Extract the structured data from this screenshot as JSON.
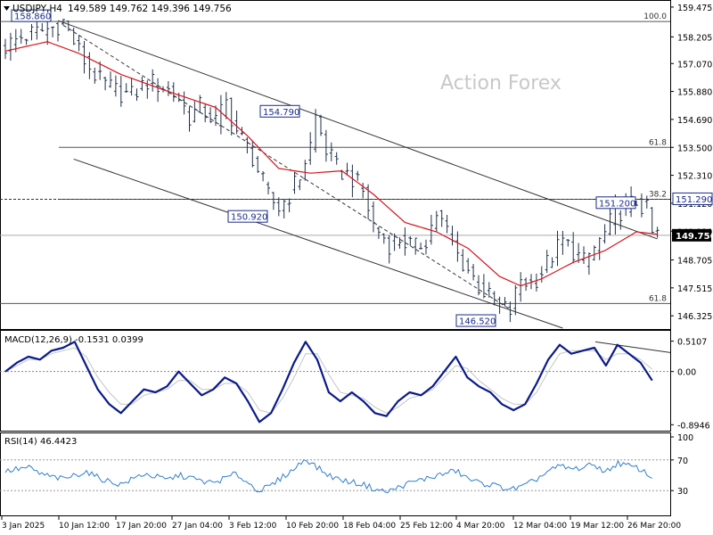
{
  "header": {
    "symbol": "USDJPY,H4",
    "ohlc": "149.589 149.762 149.396 149.756",
    "watermark": "Action Forex"
  },
  "colors": {
    "candle": "#1f2f4a",
    "ma": "#d4141c",
    "macd": "#0a1a8a",
    "macd_signal": "#c4c4c4",
    "rsi": "#2f7fd0",
    "grid": "#9a9a9a",
    "label_box": "#1a2b8c"
  },
  "x_axis": {
    "labels": [
      "3 Jan 2025",
      "10 Jan 12:00",
      "17 Jan 20:00",
      "27 Jan 04:00",
      "3 Feb 12:00",
      "10 Feb 20:00",
      "18 Feb 04:00",
      "25 Feb 12:00",
      "4 Mar 20:00",
      "12 Mar 04:00",
      "19 Mar 12:00",
      "26 Mar 20:00"
    ]
  },
  "chart_data": [
    {
      "type": "candlestick",
      "title": "USDJPY,H4",
      "ylim": [
        145.8,
        159.7
      ],
      "y_ticks": [
        159.475,
        158.205,
        157.07,
        155.88,
        154.69,
        153.5,
        152.31,
        151.12,
        149.93,
        148.705,
        147.515,
        146.325
      ],
      "y_tick_labels": [
        "159.475",
        "158.205",
        "157.070",
        "155.880",
        "154.690",
        "153.500",
        "152.310",
        "151.120",
        "149.930",
        "148.705",
        "147.515",
        "146.325"
      ],
      "last_price": "149.756",
      "price_path": [
        [
          0,
          157.8
        ],
        [
          3,
          158.2
        ],
        [
          6,
          158.4
        ],
        [
          9,
          158.6
        ],
        [
          11,
          158.86
        ],
        [
          13,
          158.0
        ],
        [
          15,
          157.2
        ],
        [
          18,
          156.3
        ],
        [
          21,
          155.9
        ],
        [
          24,
          155.7
        ],
        [
          27,
          156.3
        ],
        [
          30,
          156.1
        ],
        [
          33,
          155.6
        ],
        [
          35,
          154.8
        ],
        [
          37,
          155.2
        ],
        [
          40,
          154.6
        ],
        [
          42,
          155.4
        ],
        [
          44,
          154.2
        ],
        [
          47,
          153.1
        ],
        [
          50,
          151.4
        ],
        [
          52,
          150.92
        ],
        [
          54,
          151.5
        ],
        [
          56,
          152.3
        ],
        [
          58,
          153.6
        ],
        [
          59,
          154.79
        ],
        [
          61,
          153.4
        ],
        [
          63,
          152.6
        ],
        [
          66,
          152.2
        ],
        [
          68,
          151.6
        ],
        [
          70,
          150.2
        ],
        [
          73,
          149.4
        ],
        [
          75,
          149.6
        ],
        [
          78,
          149.2
        ],
        [
          80,
          149.6
        ],
        [
          82,
          150.7
        ],
        [
          84,
          149.9
        ],
        [
          86,
          148.9
        ],
        [
          88,
          148.3
        ],
        [
          90,
          147.6
        ],
        [
          92,
          147.1
        ],
        [
          94,
          146.7
        ],
        [
          96,
          146.52
        ],
        [
          98,
          147.9
        ],
        [
          100,
          147.7
        ],
        [
          102,
          148.2
        ],
        [
          104,
          148.9
        ],
        [
          106,
          149.5
        ],
        [
          108,
          149.1
        ],
        [
          110,
          148.6
        ],
        [
          112,
          149.2
        ],
        [
          114,
          149.8
        ],
        [
          116,
          150.7
        ],
        [
          118,
          150.9
        ],
        [
          120,
          151.2
        ],
        [
          122,
          150.8
        ],
        [
          123,
          149.8
        ],
        [
          124,
          149.756
        ]
      ],
      "moving_average": [
        [
          0,
          157.6
        ],
        [
          8,
          158.0
        ],
        [
          14,
          157.5
        ],
        [
          22,
          156.6
        ],
        [
          32,
          155.8
        ],
        [
          40,
          155.2
        ],
        [
          46,
          154.0
        ],
        [
          52,
          152.6
        ],
        [
          58,
          152.4
        ],
        [
          64,
          152.5
        ],
        [
          70,
          151.5
        ],
        [
          76,
          150.3
        ],
        [
          82,
          149.9
        ],
        [
          88,
          149.2
        ],
        [
          94,
          148.0
        ],
        [
          98,
          147.6
        ],
        [
          102,
          147.9
        ],
        [
          108,
          148.6
        ],
        [
          114,
          149.1
        ],
        [
          120,
          149.9
        ],
        [
          124,
          149.8
        ]
      ],
      "levels": [
        {
          "label": "100.0",
          "value": 158.86
        },
        {
          "label": "61.8",
          "value": 153.5
        },
        {
          "label": "38.2",
          "value": 151.29
        },
        {
          "label": "61.8",
          "value": 146.85
        }
      ],
      "price_labels": [
        {
          "text": "158.860",
          "bar": 10,
          "value": 158.86
        },
        {
          "text": "154.790",
          "bar": 58,
          "value": 154.79
        },
        {
          "text": "150.920",
          "bar": 52,
          "value": 150.92
        },
        {
          "text": "151.200",
          "bar": 120,
          "value": 151.2
        },
        {
          "text": "146.520",
          "bar": 96,
          "value": 146.52
        },
        {
          "text": "151.290",
          "bar": 130,
          "value": 151.29
        }
      ]
    },
    {
      "type": "line",
      "title": "MACD(12,26,9) -0.1531 0.0399",
      "ylim": [
        -0.95,
        0.58
      ],
      "y_ticks": [
        0.5107,
        0.0,
        -0.8946
      ],
      "y_tick_labels": [
        "0.5107",
        "0.00",
        "-0.8946"
      ],
      "series": [
        {
          "values": [
            0.0,
            0.15,
            0.25,
            0.2,
            0.35,
            0.4,
            0.5,
            0.1,
            -0.3,
            -0.55,
            -0.7,
            -0.5,
            -0.3,
            -0.35,
            -0.25,
            0.0,
            -0.2,
            -0.4,
            -0.3,
            -0.1,
            -0.2,
            -0.5,
            -0.85,
            -0.7,
            -0.3,
            0.15,
            0.5,
            0.2,
            -0.35,
            -0.5,
            -0.35,
            -0.5,
            -0.7,
            -0.75,
            -0.5,
            -0.35,
            -0.4,
            -0.25,
            0.0,
            0.25,
            -0.1,
            -0.25,
            -0.35,
            -0.55,
            -0.65,
            -0.55,
            -0.2,
            0.2,
            0.45,
            0.3,
            0.35,
            0.4,
            0.1,
            0.45,
            0.3,
            0.15,
            -0.15
          ]
        },
        {
          "values": [
            0.0,
            0.1,
            0.2,
            0.2,
            0.3,
            0.35,
            0.4,
            0.25,
            -0.1,
            -0.35,
            -0.55,
            -0.55,
            -0.4,
            -0.35,
            -0.3,
            -0.15,
            -0.15,
            -0.3,
            -0.3,
            -0.2,
            -0.2,
            -0.35,
            -0.65,
            -0.7,
            -0.45,
            -0.1,
            0.3,
            0.3,
            -0.05,
            -0.35,
            -0.4,
            -0.45,
            -0.6,
            -0.7,
            -0.6,
            -0.45,
            -0.4,
            -0.3,
            -0.1,
            0.1,
            0.05,
            -0.15,
            -0.3,
            -0.45,
            -0.55,
            -0.55,
            -0.35,
            0.0,
            0.3,
            0.35,
            0.35,
            0.35,
            0.2,
            0.3,
            0.3,
            0.2,
            0.04
          ]
        }
      ]
    },
    {
      "type": "line",
      "title": "RSI(14) 46.4423",
      "ylim": [
        0,
        100
      ],
      "y_ticks": [
        100,
        70,
        30
      ],
      "y_tick_labels": [
        "100",
        "70",
        "30"
      ],
      "series": [
        {
          "values": [
            55,
            58,
            60,
            52,
            48,
            45,
            50,
            55,
            47,
            42,
            38,
            45,
            52,
            48,
            44,
            50,
            47,
            42,
            40,
            46,
            52,
            40,
            30,
            36,
            48,
            58,
            72,
            60,
            50,
            44,
            41,
            38,
            32,
            28,
            34,
            40,
            44,
            48,
            52,
            56,
            46,
            40,
            38,
            34,
            32,
            36,
            45,
            55,
            62,
            58,
            60,
            64,
            54,
            66,
            62,
            58,
            46
          ]
        }
      ]
    }
  ]
}
